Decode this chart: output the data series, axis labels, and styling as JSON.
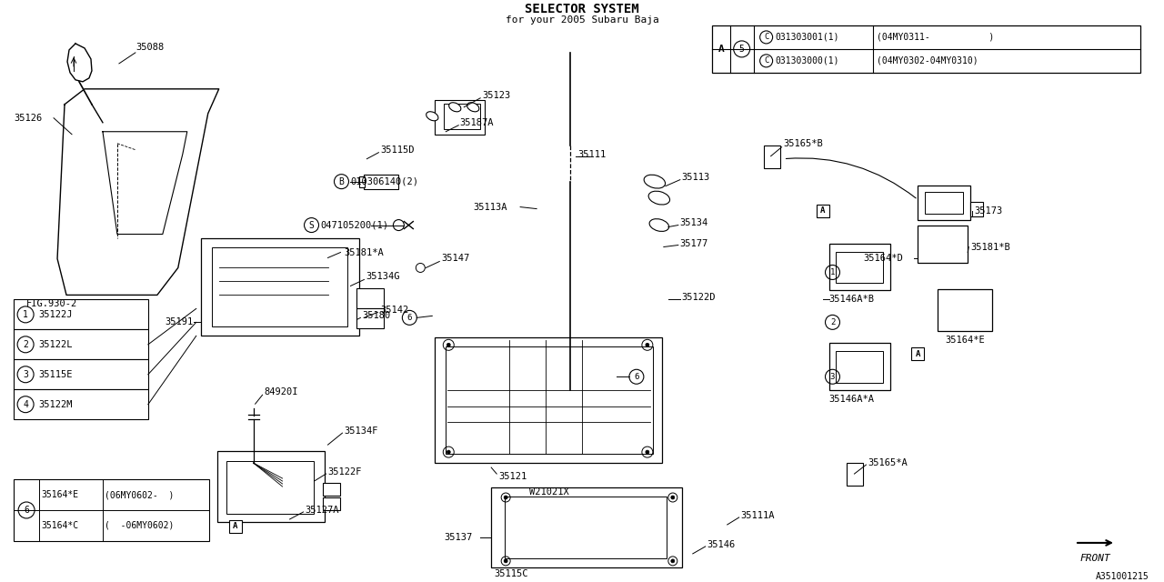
{
  "title": "SELECTOR SYSTEM",
  "subtitle": "for your 2005 Subaru Baja",
  "bg_color": "#ffffff",
  "line_color": "#000000",
  "fig_width": 12.8,
  "fig_height": 6.4,
  "legend1": {
    "items": [
      {
        "num": "1",
        "part": "35122J"
      },
      {
        "num": "2",
        "part": "35122L"
      },
      {
        "num": "3",
        "part": "35115E"
      },
      {
        "num": "4",
        "part": "35122M"
      }
    ]
  },
  "legend6": {
    "items": [
      {
        "part": "35164*C",
        "note": "(  -06MY0602)"
      },
      {
        "part": "35164*E",
        "note": "(06MY0602-  )"
      }
    ]
  },
  "watermark": "A351001215",
  "fig_ref": "FIG.930-2",
  "front_label": "FRONT"
}
